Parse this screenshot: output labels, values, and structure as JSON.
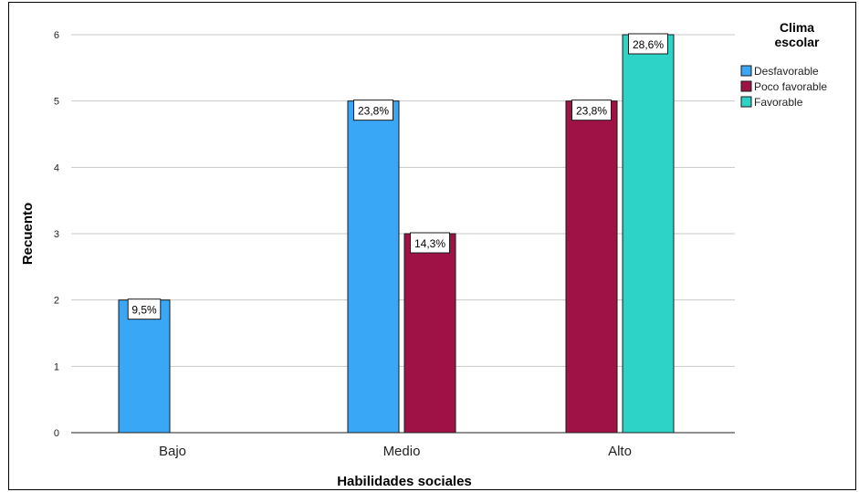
{
  "chart_data": {
    "type": "bar",
    "xlabel": "Habilidades sociales",
    "ylabel": "Recuento",
    "ylim": [
      0,
      6
    ],
    "yticks": [
      "0",
      "1",
      "2",
      "3",
      "4",
      "5",
      "6"
    ],
    "grid": "horizontal",
    "categories": [
      "Bajo",
      "Medio",
      "Alto"
    ],
    "legend": {
      "title_lines": [
        "Clima",
        "escolar"
      ],
      "placement": "right"
    },
    "series": [
      {
        "name": "Desfavorable",
        "color": "#3aa6f6",
        "values": [
          2,
          5,
          0
        ],
        "labels": [
          "9,5%",
          "23,8%",
          ""
        ]
      },
      {
        "name": "Poco favorable",
        "color": "#9f1246",
        "values": [
          0,
          3,
          5
        ],
        "labels": [
          "",
          "14,3%",
          "23,8%"
        ]
      },
      {
        "name": "Favorable",
        "color": "#2dd3c6",
        "values": [
          0,
          0,
          6
        ],
        "labels": [
          "",
          "",
          "28,6%"
        ]
      }
    ]
  }
}
